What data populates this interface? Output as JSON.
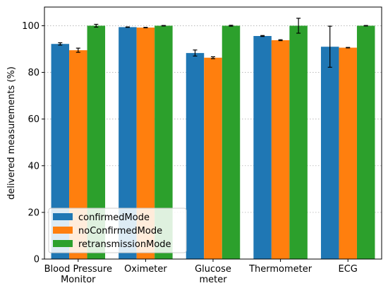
{
  "chart_data": {
    "type": "bar",
    "title": "",
    "xlabel": "",
    "ylabel": "delivered measurements (%)",
    "ylim": [
      0,
      108
    ],
    "yticks": [
      0,
      20,
      40,
      60,
      80,
      100
    ],
    "grid": "horizontal-dotted",
    "legend_position": "bottom-left",
    "categories": [
      "Blood Pressure\nMonitor",
      "Oximeter",
      "Glucose\nmeter",
      "Thermometer",
      "ECG"
    ],
    "series": [
      {
        "name": "confirmedMode",
        "color": "#1f77b4",
        "values": [
          92.2,
          99.4,
          88.3,
          95.6,
          91.0
        ],
        "errors": [
          0.5,
          0.1,
          1.3,
          0.2,
          8.8
        ]
      },
      {
        "name": "noConfirmedMode",
        "color": "#ff7f0e",
        "values": [
          89.5,
          99.2,
          86.3,
          93.8,
          90.6
        ],
        "errors": [
          0.9,
          0.1,
          0.4,
          0.2,
          0.1
        ]
      },
      {
        "name": "retransmissionMode",
        "color": "#2ca02c",
        "values": [
          100.0,
          100.0,
          100.0,
          100.0,
          100.0
        ],
        "errors": [
          0.6,
          0.1,
          0.2,
          3.2,
          0.1
        ]
      }
    ]
  }
}
